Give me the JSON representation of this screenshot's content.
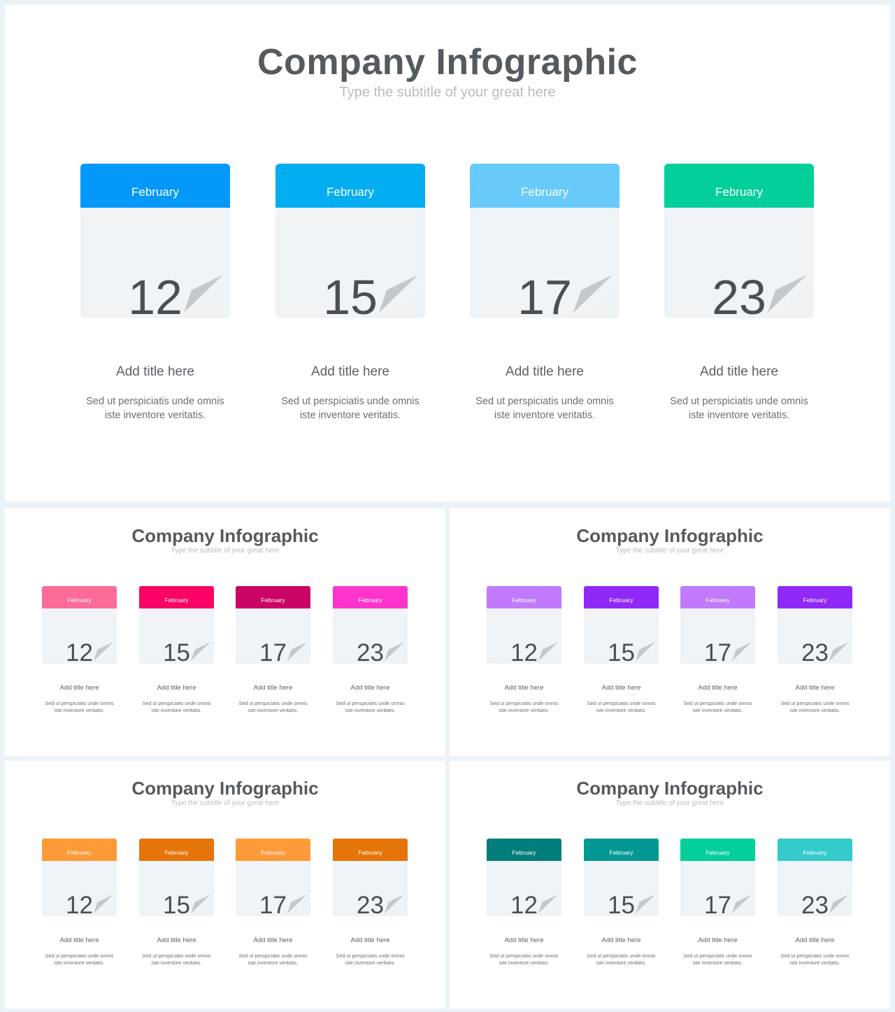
{
  "slides": [
    {
      "title": "Company Infographic",
      "subtitle": "Type the subtitle of your great here",
      "cards": [
        {
          "month": "February",
          "day": "12",
          "title": "Add title here",
          "desc_line1": "Sed ut perspiciatis unde omnis",
          "desc_line2": "iste inventore veritatis.",
          "color": "#0498fb"
        },
        {
          "month": "February",
          "day": "15",
          "title": "Add title here",
          "desc_line1": "Sed ut perspiciatis unde omnis",
          "desc_line2": "iste inventore veritatis.",
          "color": "#02aeef"
        },
        {
          "month": "February",
          "day": "17",
          "title": "Add title here",
          "desc_line1": "Sed ut perspiciatis unde omnis",
          "desc_line2": "iste inventore veritatis.",
          "color": "#67cafb"
        },
        {
          "month": "February",
          "day": "23",
          "title": "Add title here",
          "desc_line1": "Sed ut perspiciatis unde omnis",
          "desc_line2": "iste inventore veritatis.",
          "color": "#03cf9b"
        }
      ]
    },
    {
      "title": "Company Infographic",
      "subtitle": "Type the subtitle of your great here",
      "cards": [
        {
          "month": "February",
          "day": "12",
          "title": "Add title here",
          "desc_line1": "Sed ut perspiciatis unde omnis",
          "desc_line2": "iste inventore veritatis.",
          "color": "#fd6b99"
        },
        {
          "month": "February",
          "day": "15",
          "title": "Add title here",
          "desc_line1": "Sed ut perspiciatis unde omnis",
          "desc_line2": "iste inventore veritatis.",
          "color": "#fb0466"
        },
        {
          "month": "February",
          "day": "17",
          "title": "Add title here",
          "desc_line1": "Sed ut perspiciatis unde omnis",
          "desc_line2": "iste inventore veritatis.",
          "color": "#c90465"
        },
        {
          "month": "February",
          "day": "23",
          "title": "Add title here",
          "desc_line1": "Sed ut perspiciatis unde omnis",
          "desc_line2": "iste inventore veritatis.",
          "color": "#fd35cc"
        }
      ]
    },
    {
      "title": "Company Infographic",
      "subtitle": "Type the subtitle of your great here",
      "cards": [
        {
          "month": "February",
          "day": "12",
          "title": "Add title here",
          "desc_line1": "Sed ut perspiciatis unde omnis",
          "desc_line2": "iste inventore veritatis.",
          "color": "#c17afb"
        },
        {
          "month": "February",
          "day": "15",
          "title": "Add title here",
          "desc_line1": "Sed ut perspiciatis unde omnis",
          "desc_line2": "iste inventore veritatis.",
          "color": "#9029f8"
        },
        {
          "month": "February",
          "day": "17",
          "title": "Add title here",
          "desc_line1": "Sed ut perspiciatis unde omnis",
          "desc_line2": "iste inventore veritatis.",
          "color": "#c17afb"
        },
        {
          "month": "February",
          "day": "23",
          "title": "Add title here",
          "desc_line1": "Sed ut perspiciatis unde omnis",
          "desc_line2": "iste inventore veritatis.",
          "color": "#9029f8"
        }
      ]
    },
    {
      "title": "Company Infographic",
      "subtitle": "Type the subtitle of your great here",
      "cards": [
        {
          "month": "February",
          "day": "12",
          "title": "Add title here",
          "desc_line1": "Sed ut perspiciatis unde omnis",
          "desc_line2": "iste inventore veritatis.",
          "color": "#fd9b38"
        },
        {
          "month": "February",
          "day": "15",
          "title": "Add title here",
          "desc_line1": "Sed ut perspiciatis unde omnis",
          "desc_line2": "iste inventore veritatis.",
          "color": "#e57409"
        },
        {
          "month": "February",
          "day": "17",
          "title": "Add title here",
          "desc_line1": "Sed ut perspiciatis unde omnis",
          "desc_line2": "iste inventore veritatis.",
          "color": "#fd9b38"
        },
        {
          "month": "February",
          "day": "23",
          "title": "Add title here",
          "desc_line1": "Sed ut perspiciatis unde omnis",
          "desc_line2": "iste inventore veritatis.",
          "color": "#e57409"
        }
      ]
    },
    {
      "title": "Company Infographic",
      "subtitle": "Type the subtitle of your great here",
      "cards": [
        {
          "month": "February",
          "day": "12",
          "title": "Add title here",
          "desc_line1": "Sed ut perspiciatis unde omnis",
          "desc_line2": "iste inventore veritatis.",
          "color": "#037d7a"
        },
        {
          "month": "February",
          "day": "15",
          "title": "Add title here",
          "desc_line1": "Sed ut perspiciatis unde omnis",
          "desc_line2": "iste inventore veritatis.",
          "color": "#049894"
        },
        {
          "month": "February",
          "day": "17",
          "title": "Add title here",
          "desc_line1": "Sed ut perspiciatis unde omnis",
          "desc_line2": "iste inventore veritatis.",
          "color": "#03cf9b"
        },
        {
          "month": "February",
          "day": "23",
          "title": "Add title here",
          "desc_line1": "Sed ut perspiciatis unde omnis",
          "desc_line2": "iste inventore veritatis.",
          "color": "#33cbcb"
        }
      ]
    }
  ]
}
